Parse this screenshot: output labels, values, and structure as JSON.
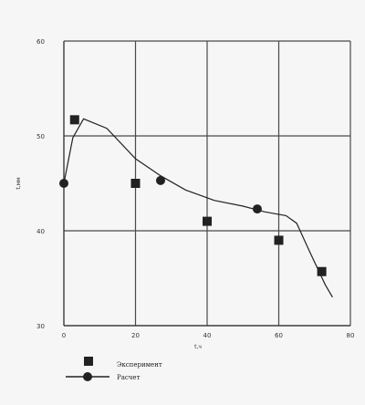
{
  "chart_data": {
    "type": "scatter",
    "xlabel": "t,ч",
    "ylabel": "t,мм",
    "xlim": [
      0,
      80
    ],
    "ylim": [
      30,
      60
    ],
    "xticks": [
      0,
      20,
      40,
      60,
      80
    ],
    "yticks": [
      30,
      40,
      50,
      60
    ],
    "grid": true,
    "legend_position": "bottom-left",
    "series": [
      {
        "name": "Эксперимент",
        "marker": "square",
        "color": "#222222",
        "x": [
          3,
          20,
          40,
          60,
          72
        ],
        "y": [
          51.7,
          45.0,
          41.0,
          39.0,
          35.7
        ]
      },
      {
        "name": "Расчет",
        "marker": "circle",
        "color": "#222222",
        "x": [
          0,
          27,
          54
        ],
        "y": [
          45.0,
          45.3,
          42.3
        ]
      }
    ],
    "curve": {
      "x": [
        0,
        2.5,
        5.5,
        12,
        20,
        27,
        34,
        42,
        50,
        56,
        62,
        65,
        69,
        73,
        75
      ],
      "y": [
        45.0,
        49.8,
        51.8,
        50.8,
        47.6,
        45.8,
        44.3,
        43.2,
        42.6,
        42.0,
        41.6,
        40.8,
        37.5,
        34.3,
        33.0
      ]
    }
  }
}
